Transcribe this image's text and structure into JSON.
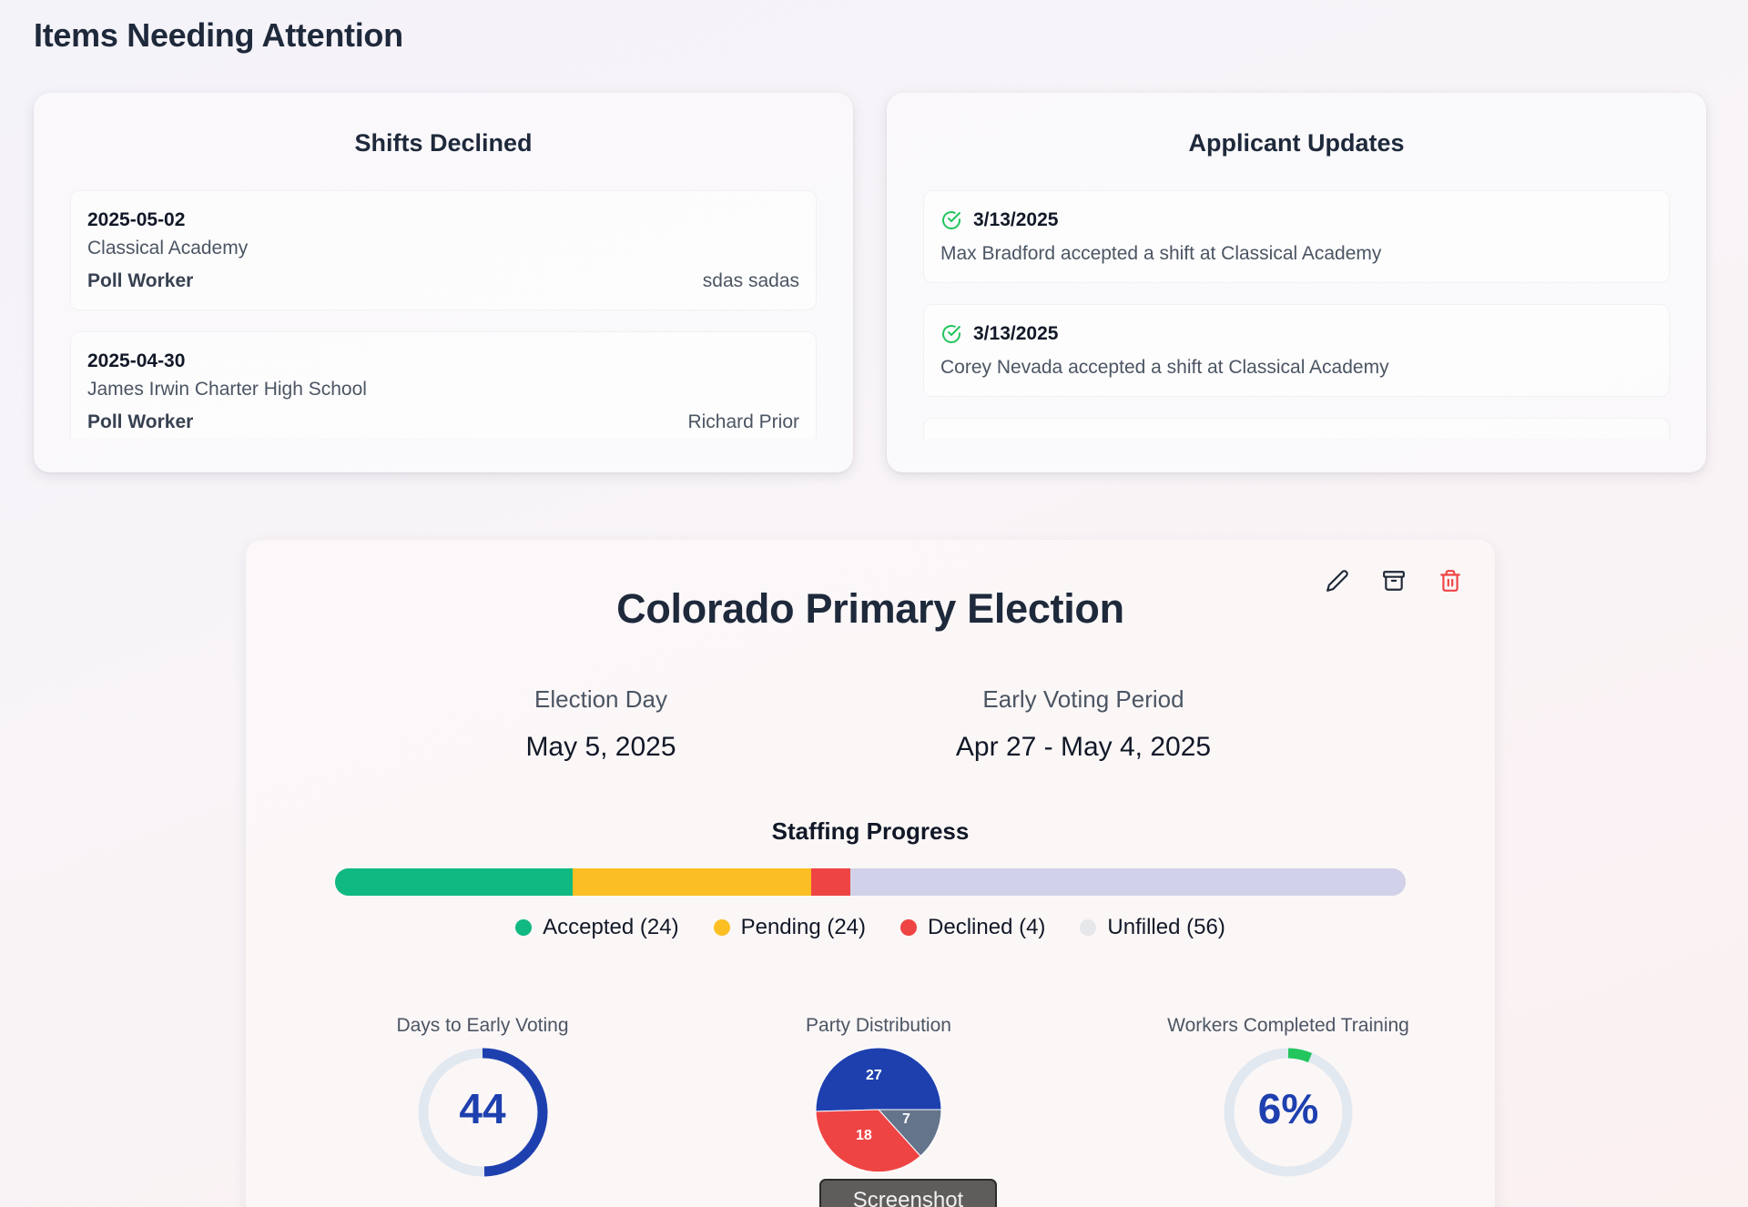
{
  "page": {
    "title": "Items Needing Attention"
  },
  "shifts_declined": {
    "title": "Shifts Declined",
    "items": [
      {
        "date": "2025-05-02",
        "location": "Classical Academy",
        "role": "Poll Worker",
        "person": "sdas sadas"
      },
      {
        "date": "2025-04-30",
        "location": "James Irwin Charter High School",
        "role": "Poll Worker",
        "person": "Richard Prior"
      }
    ]
  },
  "applicant_updates": {
    "title": "Applicant Updates",
    "items": [
      {
        "icon": "check-circle-icon",
        "date": "3/13/2025",
        "text": "Max Bradford accepted a shift at Classical Academy"
      },
      {
        "icon": "check-circle-icon",
        "date": "3/13/2025",
        "text": "Corey Nevada accepted a shift at Classical Academy"
      }
    ]
  },
  "election": {
    "title": "Colorado Primary Election",
    "actions": {
      "edit_icon": "pencil-icon",
      "archive_icon": "archive-icon",
      "delete_icon": "trash-icon"
    },
    "election_day": {
      "label": "Election Day",
      "value": "May 5, 2025"
    },
    "early_voting": {
      "label": "Early Voting Period",
      "value": "Apr 27 - May 4, 2025"
    },
    "staffing": {
      "title": "Staffing Progress",
      "segments": [
        {
          "key": "accepted",
          "label": "Accepted (24)",
          "count": 24,
          "color": "#10b981"
        },
        {
          "key": "pending",
          "label": "Pending (24)",
          "count": 24,
          "color": "#fbbf24"
        },
        {
          "key": "declined",
          "label": "Declined (4)",
          "count": 4,
          "color": "#ef4444"
        },
        {
          "key": "unfilled",
          "label": "Unfilled (56)",
          "count": 56,
          "color": "#d1d1e9",
          "legend_color": "#e5e7eb"
        }
      ]
    },
    "metrics": {
      "days_to_early_voting": {
        "label": "Days to Early Voting",
        "value": "44",
        "ring_color": "#1e40af",
        "track_color": "#e2e8f0"
      },
      "party_distribution": {
        "label": "Party Distribution",
        "slices": [
          {
            "value": 27,
            "color": "#1e40af"
          },
          {
            "value": 7,
            "color": "#64748b"
          },
          {
            "value": 18,
            "color": "#ef4444"
          }
        ]
      },
      "training": {
        "label": "Workers Completed Training",
        "value": "6%",
        "percent": 6,
        "ring_color": "#22c55e",
        "track_color": "#e2e8f0"
      }
    }
  },
  "tooltip": {
    "label": "Screenshot"
  }
}
